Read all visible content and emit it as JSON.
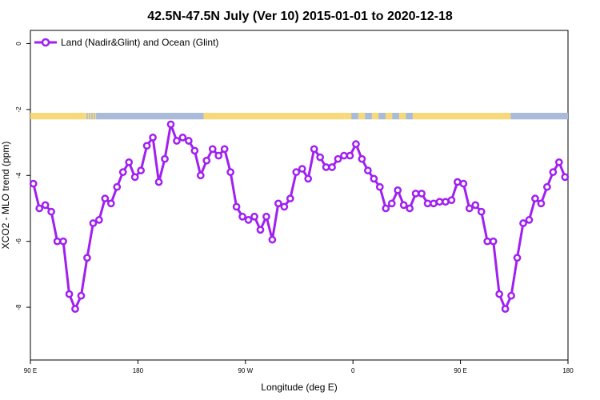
{
  "chart_data": {
    "type": "line",
    "title": "42.5N-47.5N July (Ver 10)   2015-01-01 to 2020-12-18",
    "xlabel": "Longitude (deg E)",
    "ylabel": "XCO2 - MLO trend (ppm)",
    "xlim": [
      90,
      540
    ],
    "ylim": [
      -9.6,
      0.4
    ],
    "x_ticks": [
      {
        "value": 90,
        "label": "90 E"
      },
      {
        "value": 180,
        "label": "180"
      },
      {
        "value": 270,
        "label": "90 W"
      },
      {
        "value": 360,
        "label": "0"
      },
      {
        "value": 450,
        "label": "90 E"
      },
      {
        "value": 540,
        "label": "180"
      }
    ],
    "y_ticks": [
      {
        "value": 0,
        "label": "0"
      },
      {
        "value": -2,
        "label": "-2"
      },
      {
        "value": -4,
        "label": "-4"
      },
      {
        "value": -6,
        "label": "-6"
      },
      {
        "value": -8,
        "label": "-8"
      }
    ],
    "grid": false,
    "legend_position": "top-left",
    "land_ocean_band": {
      "y_top": -2.1,
      "y_bottom": -2.3,
      "land_color": "#f7d97a",
      "ocean_color": "#a9bbd9",
      "segments": [
        {
          "from": 90,
          "to": 136,
          "kind": "land"
        },
        {
          "from": 136,
          "to": 146,
          "kind": "mixed"
        },
        {
          "from": 146,
          "to": 235,
          "kind": "ocean"
        },
        {
          "from": 235,
          "to": 353,
          "kind": "land"
        },
        {
          "from": 353,
          "to": 410,
          "kind": "mixed"
        },
        {
          "from": 410,
          "to": 492,
          "kind": "land"
        },
        {
          "from": 492,
          "to": 540,
          "kind": "ocean"
        }
      ]
    },
    "series": [
      {
        "name": "Land (Nadir&Glint) and Ocean (Glint)",
        "color": "#a020f0",
        "x": [
          92.5,
          97.5,
          102.5,
          107.5,
          112.5,
          117.5,
          122.5,
          127.5,
          132.5,
          137.5,
          142.5,
          147.5,
          152.5,
          157.5,
          162.5,
          167.5,
          172.5,
          177.5,
          182.5,
          187.5,
          192.5,
          197.5,
          202.5,
          207.5,
          212.5,
          217.5,
          222.5,
          227.5,
          232.5,
          237.5,
          242.5,
          247.5,
          252.5,
          257.5,
          262.5,
          267.5,
          272.5,
          277.5,
          282.5,
          287.5,
          292.5,
          297.5,
          302.5,
          307.5,
          312.5,
          317.5,
          322.5,
          327.5,
          332.5,
          337.5,
          342.5,
          347.5,
          352.5,
          357.5,
          362.5,
          367.5,
          372.5,
          377.5,
          382.5,
          387.5,
          392.5,
          397.5,
          402.5,
          407.5,
          412.5,
          417.5,
          422.5,
          427.5,
          432.5,
          437.5,
          442.5,
          447.5,
          452.5,
          457.5,
          462.5,
          467.5,
          472.5,
          477.5,
          482.5,
          487.5,
          492.5,
          497.5,
          502.5,
          507.5,
          512.5,
          517.5,
          522.5,
          527.5,
          532.5,
          537.5
        ],
        "values": [
          -4.25,
          -5.0,
          -4.9,
          -5.1,
          -6.0,
          -6.0,
          -7.6,
          -8.05,
          -7.65,
          -6.5,
          -5.45,
          -5.35,
          -4.7,
          -4.85,
          -4.35,
          -3.9,
          -3.6,
          -4.05,
          -3.85,
          -3.1,
          -2.85,
          -4.2,
          -3.5,
          -2.45,
          -2.95,
          -2.85,
          -2.95,
          -3.25,
          -4.0,
          -3.55,
          -3.2,
          -3.4,
          -3.2,
          -3.9,
          -4.95,
          -5.25,
          -5.35,
          -5.25,
          -5.65,
          -5.25,
          -5.95,
          -4.85,
          -4.95,
          -4.7,
          -3.9,
          -3.8,
          -4.1,
          -3.2,
          -3.45,
          -3.75,
          -3.75,
          -3.5,
          -3.4,
          -3.4,
          -3.05,
          -3.5,
          -3.85,
          -4.1,
          -4.35,
          -5.0,
          -4.85,
          -4.45,
          -4.9,
          -5.0,
          -4.55,
          -4.55,
          -4.85,
          -4.85,
          -4.8,
          -4.8,
          -4.75,
          -4.2,
          -4.25,
          -5.0,
          -4.9,
          -5.1,
          -6.0,
          -6.0,
          -7.6,
          -8.05,
          -7.65,
          -6.5,
          -5.45,
          -5.35,
          -4.7,
          -4.85,
          -4.35,
          -3.9,
          -3.6,
          -4.05
        ]
      }
    ]
  }
}
